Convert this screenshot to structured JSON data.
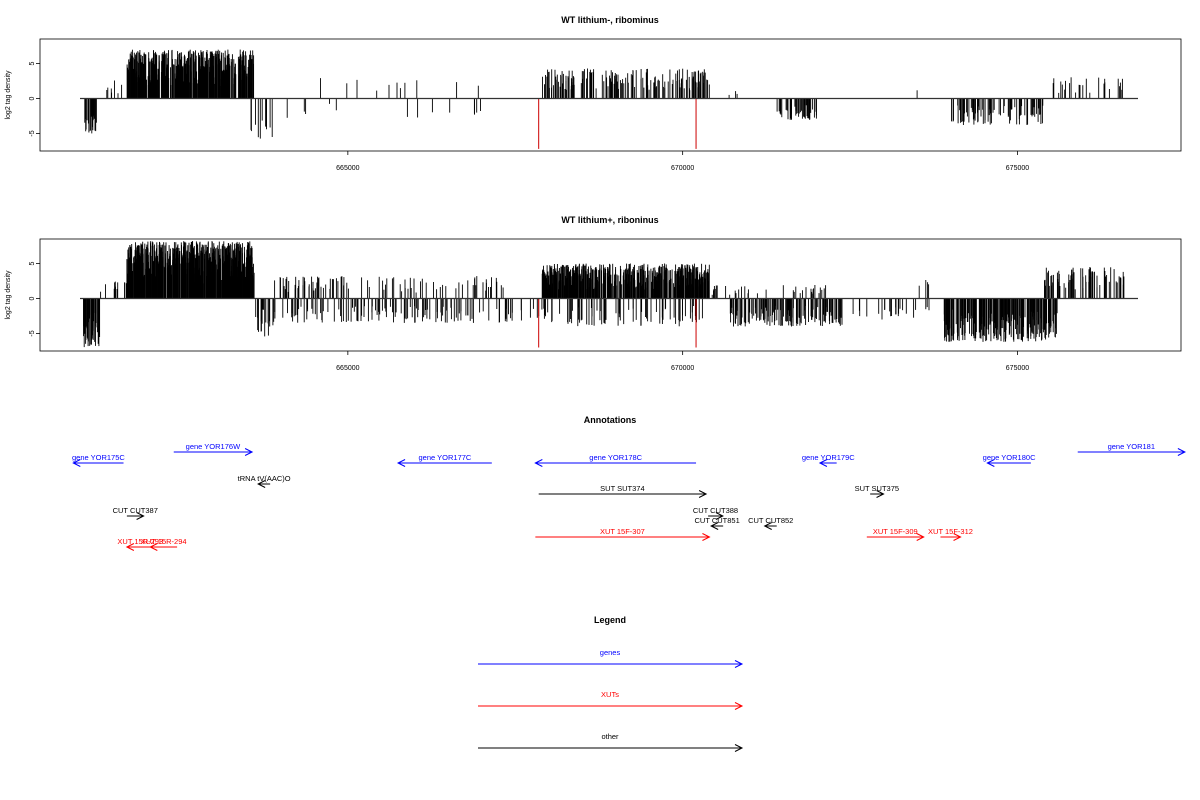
{
  "chart_data": [
    {
      "type": "bar",
      "title": "WT lithium-, ribominus",
      "ylabel": "log2 tag density",
      "xlim": [
        661000,
        676800
      ],
      "ylim": [
        -7.5,
        8.5
      ],
      "yticks": [
        -5,
        0,
        5
      ],
      "xticks": [
        665000,
        670000,
        675000
      ],
      "xtick_labels": [
        "665000",
        "670000",
        "675000"
      ],
      "bar_color": "#000000",
      "marker_color": "#cc0000",
      "markers": [
        {
          "x": 667850,
          "value": -7.2
        },
        {
          "x": 670200,
          "value": -7.2
        }
      ],
      "regions": [
        {
          "start": 661050,
          "end": 661250,
          "sign": -1,
          "density": 2.2,
          "max": 5.0
        },
        {
          "start": 661300,
          "end": 661700,
          "sign": 1,
          "density": 0.25,
          "max": 2.8
        },
        {
          "start": 661700,
          "end": 663600,
          "sign": 1,
          "density": 3.5,
          "max": 7.0
        },
        {
          "start": 663550,
          "end": 663900,
          "sign": -1,
          "density": 0.5,
          "max": 6.0
        },
        {
          "start": 663900,
          "end": 667200,
          "sign": 1,
          "density": 0.05,
          "max": 3.0
        },
        {
          "start": 664000,
          "end": 667200,
          "sign": -1,
          "density": 0.06,
          "max": 3.0
        },
        {
          "start": 667900,
          "end": 670400,
          "sign": 1,
          "density": 1.0,
          "max": 4.3
        },
        {
          "start": 670500,
          "end": 670900,
          "sign": 1,
          "density": 0.1,
          "max": 2.0
        },
        {
          "start": 671400,
          "end": 672000,
          "sign": -1,
          "density": 1.2,
          "max": 3.2
        },
        {
          "start": 673500,
          "end": 673600,
          "sign": 1,
          "density": 0.2,
          "max": 4.0
        },
        {
          "start": 673950,
          "end": 675400,
          "sign": -1,
          "density": 0.9,
          "max": 3.8
        },
        {
          "start": 675500,
          "end": 676600,
          "sign": 1,
          "density": 0.35,
          "max": 3.1
        }
      ]
    },
    {
      "type": "bar",
      "title": "WT lithium+, riboninus",
      "ylabel": "log2 tag density",
      "xlim": [
        661000,
        676800
      ],
      "ylim": [
        -7.5,
        8.5
      ],
      "yticks": [
        -5,
        0,
        5
      ],
      "xticks": [
        665000,
        670000,
        675000
      ],
      "xtick_labels": [
        "665000",
        "670000",
        "675000"
      ],
      "bar_color": "#000000",
      "marker_color": "#cc0000",
      "markers": [
        {
          "x": 667850,
          "value": -7.0
        },
        {
          "x": 670200,
          "value": -7.0
        }
      ],
      "regions": [
        {
          "start": 661050,
          "end": 661300,
          "sign": -1,
          "density": 3.0,
          "max": 7.0
        },
        {
          "start": 661300,
          "end": 661700,
          "sign": 1,
          "density": 0.4,
          "max": 2.5
        },
        {
          "start": 661700,
          "end": 663600,
          "sign": 1,
          "density": 4.5,
          "max": 8.2
        },
        {
          "start": 663550,
          "end": 663900,
          "sign": -1,
          "density": 0.8,
          "max": 5.5
        },
        {
          "start": 663900,
          "end": 667400,
          "sign": 1,
          "density": 0.4,
          "max": 3.2
        },
        {
          "start": 663900,
          "end": 667600,
          "sign": -1,
          "density": 0.5,
          "max": 3.5
        },
        {
          "start": 667900,
          "end": 670400,
          "sign": 1,
          "density": 3.0,
          "max": 5.0
        },
        {
          "start": 667700,
          "end": 670300,
          "sign": -1,
          "density": 0.5,
          "max": 4.0
        },
        {
          "start": 670400,
          "end": 672200,
          "sign": 1,
          "density": 0.3,
          "max": 2.0
        },
        {
          "start": 670700,
          "end": 672400,
          "sign": -1,
          "density": 1.2,
          "max": 4.0
        },
        {
          "start": 672500,
          "end": 673700,
          "sign": -1,
          "density": 0.3,
          "max": 3.0
        },
        {
          "start": 673500,
          "end": 673700,
          "sign": 1,
          "density": 0.3,
          "max": 3.0
        },
        {
          "start": 673900,
          "end": 675600,
          "sign": -1,
          "density": 2.2,
          "max": 6.2
        },
        {
          "start": 675400,
          "end": 676600,
          "sign": 1,
          "density": 0.9,
          "max": 4.5
        }
      ]
    }
  ],
  "annotations": {
    "title": "Annotations",
    "items": [
      {
        "label": "gene YOR175C",
        "kind": "gene",
        "dir": "-",
        "start": 660900,
        "end": 661650,
        "row": 1
      },
      {
        "label": "gene YOR176W",
        "kind": "gene",
        "dir": "+",
        "start": 662400,
        "end": 663570,
        "row": 0
      },
      {
        "label": "gene YOR177C",
        "kind": "gene",
        "dir": "-",
        "start": 665750,
        "end": 667150,
        "row": 1
      },
      {
        "label": "gene YOR178C",
        "kind": "gene",
        "dir": "-",
        "start": 667800,
        "end": 670200,
        "row": 1
      },
      {
        "label": "gene YOR179C",
        "kind": "gene",
        "dir": "-",
        "start": 672050,
        "end": 672300,
        "row": 1
      },
      {
        "label": "gene YOR180C",
        "kind": "gene",
        "dir": "-",
        "start": 674550,
        "end": 675200,
        "row": 1
      },
      {
        "label": "gene YOR181",
        "kind": "gene",
        "dir": "+",
        "start": 675900,
        "end": 677500,
        "row": 0
      },
      {
        "label": "tRNA tV(AAC)O",
        "kind": "other",
        "dir": "-",
        "start": 663700,
        "end": 663800,
        "row": 2
      },
      {
        "label": "SUT SUT374",
        "kind": "other",
        "dir": "+",
        "start": 667850,
        "end": 670350,
        "row": 3
      },
      {
        "label": "SUT SUT375",
        "kind": "other",
        "dir": "+",
        "start": 672800,
        "end": 673000,
        "row": 3
      },
      {
        "label": "CUT CUT387",
        "kind": "other",
        "dir": "+",
        "start": 661700,
        "end": 661950,
        "row": 4
      },
      {
        "label": "CUT CUT388",
        "kind": "other",
        "dir": "+",
        "start": 670380,
        "end": 670600,
        "row": 4
      },
      {
        "label": "CUT CUT851",
        "kind": "other",
        "dir": "-",
        "start": 670480,
        "end": 670550,
        "row": 5
      },
      {
        "label": "CUT CUT852",
        "kind": "other",
        "dir": "-",
        "start": 671250,
        "end": 671380,
        "row": 5
      },
      {
        "label": "XUT 15F-307",
        "kind": "xut",
        "dir": "+",
        "start": 667800,
        "end": 670400,
        "row": 6
      },
      {
        "label": "XUT 15F-309",
        "kind": "xut",
        "dir": "+",
        "start": 672750,
        "end": 673600,
        "row": 6
      },
      {
        "label": "XUT 15F-312",
        "kind": "xut",
        "dir": "+",
        "start": 673850,
        "end": 674150,
        "row": 6
      },
      {
        "label": "XUT 15R-293",
        "kind": "xut",
        "dir": "-",
        "start": 661700,
        "end": 662100,
        "row": 7
      },
      {
        "label": "XUT 15R-294",
        "kind": "xut",
        "dir": "-",
        "start": 662050,
        "end": 662450,
        "row": 7
      }
    ]
  },
  "legend": {
    "title": "Legend",
    "entries": [
      {
        "label": "genes",
        "kind": "gene"
      },
      {
        "label": "XUTs",
        "kind": "xut"
      },
      {
        "label": "other",
        "kind": "other"
      }
    ]
  },
  "colors": {
    "gene": "#0000ff",
    "xut": "#ff0000",
    "other": "#000000"
  }
}
